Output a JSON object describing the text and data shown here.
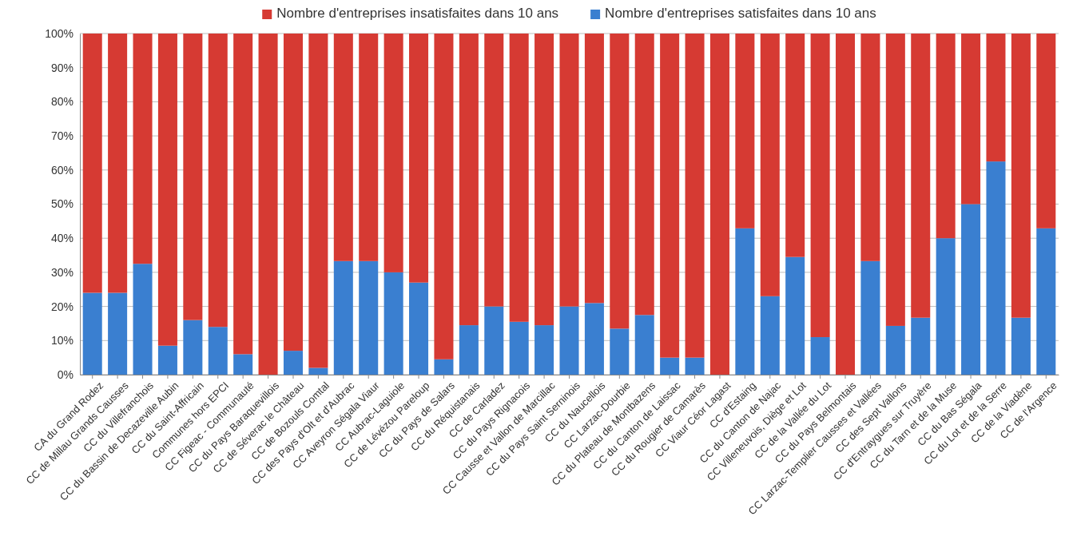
{
  "chart_data": {
    "type": "bar",
    "stacked": true,
    "legend": "top",
    "categories": [
      "CA du Grand Rodez",
      "CC de Millau Grands Causses",
      "CC du Villefranchois",
      "CC du Bassin de Decazeville Aubin",
      "CC du Saint-Affricain",
      "Communes hors EPCI",
      "CC Figeac - Communauté",
      "CC du Pays Baraquevillois",
      "CC de Séverac le Château",
      "CC de Bozouls Comtal",
      "CC des Pays d'Olt et d'Aubrac",
      "CC Aveyron Ségala Viaur",
      "CC Aubrac-Laguiole",
      "CC de Lévézou Pareloup",
      "CC du Pays de Salars",
      "CC du Réquistanais",
      "CC de Carladez",
      "CC du Pays Rignacois",
      "CC Causse et Vallon de Marcillac",
      "CC du Pays Saint Serninois",
      "CC du Naucellois",
      "CC Larzac-Dourbie",
      "CC du Plateau de Montbazens",
      "CC du Canton de Laissac",
      "CC du Rougier de Camarès",
      "CC Viaur Céor Lagast",
      "CC d'Estaing",
      "CC du Canton de Najac",
      "CC Villeneuvois, Diège et Lot",
      "CC de la Vallée du Lot",
      "CC du Pays Belmontais",
      "CC Larzac-Templier Causses et Vallées",
      "CC des Sept Vallons",
      "CC d'Entraygues sur Truyère",
      "CC du Tarn et de la Muse",
      "CC du Bas Ségala",
      "CC du Lot et de la Serre",
      "CC de la Viadène",
      "CC de l'Argence"
    ],
    "series": [
      {
        "name": "Nombre d'entreprises satisfaites dans 10 ans",
        "color": "#3a7fd0",
        "values": [
          24,
          24,
          32.5,
          8.5,
          16,
          14,
          6,
          0,
          7,
          2,
          33.3,
          33.3,
          30,
          27,
          4.5,
          14.5,
          20,
          15.5,
          14.5,
          20,
          21,
          13.5,
          17.5,
          5,
          5,
          0,
          42.9,
          23,
          34.5,
          11,
          0,
          33.3,
          14.3,
          16.7,
          40,
          50,
          62.5,
          16.7,
          42.9
        ]
      },
      {
        "name": "Nombre d'entreprises insatisfaites dans 10 ans",
        "color": "#d63a33",
        "values": [
          76,
          76,
          67.5,
          91.5,
          84,
          86,
          94,
          100,
          93,
          98,
          66.7,
          66.7,
          70,
          73,
          95.5,
          85.5,
          80,
          84.5,
          85.5,
          80,
          79,
          86.5,
          82.5,
          95,
          95,
          100,
          57.1,
          77,
          65.5,
          89,
          100,
          66.7,
          85.7,
          83.3,
          60,
          50,
          37.5,
          83.3,
          57.1
        ]
      }
    ],
    "ylim": [
      0,
      100
    ],
    "yticks": [
      {
        "value": 0,
        "label": "0%"
      },
      {
        "value": 10,
        "label": "10%"
      },
      {
        "value": 20,
        "label": "20%"
      },
      {
        "value": 30,
        "label": "30%"
      },
      {
        "value": 40,
        "label": "40%"
      },
      {
        "value": 50,
        "label": "50%"
      },
      {
        "value": 60,
        "label": "60%"
      },
      {
        "value": 70,
        "label": "70%"
      },
      {
        "value": 80,
        "label": "80%"
      },
      {
        "value": 90,
        "label": "90%"
      },
      {
        "value": 100,
        "label": "100%"
      }
    ],
    "grid": "y"
  }
}
